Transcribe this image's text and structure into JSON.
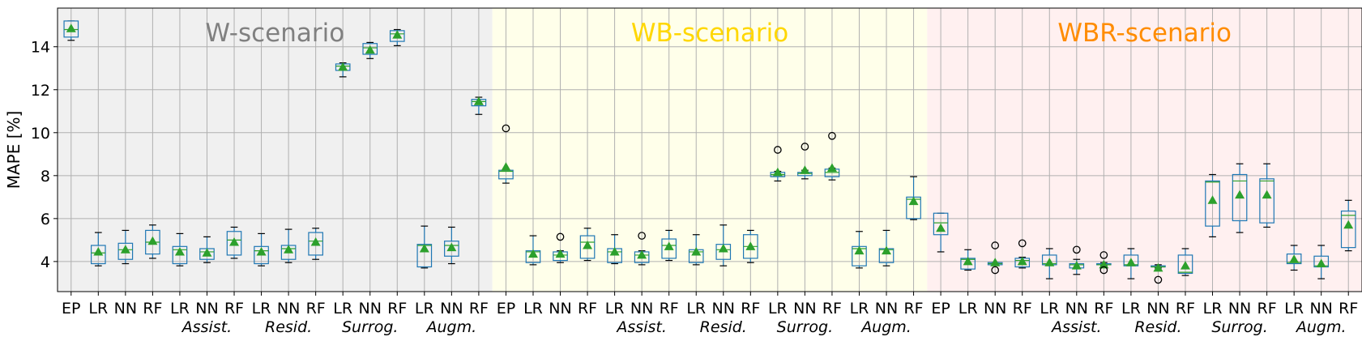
{
  "chart_data": {
    "type": "box",
    "ylabel": "MAPE [%]",
    "xlabel": "",
    "ylim": [
      2.6,
      15.8
    ],
    "yticks": [
      4,
      6,
      8,
      10,
      12,
      14
    ],
    "grid": true,
    "scenarios": [
      {
        "label": "W-scenario",
        "color": "#808080",
        "bg": "#f0f0f0",
        "start": 0,
        "end": 16
      },
      {
        "label": "WB-scenario",
        "color": "#ffd700",
        "bg": "#ffffea",
        "start": 16,
        "end": 32
      },
      {
        "label": "WBR-scenario",
        "color": "#ff8c00",
        "bg": "#fff0f0",
        "start": 32,
        "end": 48
      }
    ],
    "categories": [
      "EP",
      "LR",
      "NN",
      "RF",
      "LR",
      "NN",
      "RF",
      "LR",
      "NN",
      "RF",
      "LR",
      "NN",
      "RF",
      "LR",
      "NN",
      "RF",
      "EP",
      "LR",
      "NN",
      "RF",
      "LR",
      "NN",
      "RF",
      "LR",
      "NN",
      "RF",
      "LR",
      "NN",
      "RF",
      "LR",
      "NN",
      "RF",
      "EP",
      "LR",
      "NN",
      "RF",
      "LR",
      "NN",
      "RF",
      "LR",
      "NN",
      "RF",
      "LR",
      "NN",
      "RF",
      "LR",
      "NN",
      "RF"
    ],
    "group_labels": [
      {
        "text": "Assist.",
        "center": 5
      },
      {
        "text": "Resid.",
        "center": 8
      },
      {
        "text": "Surrog.",
        "center": 11
      },
      {
        "text": "Augm.",
        "center": 14
      },
      {
        "text": "Assist.",
        "center": 21
      },
      {
        "text": "Resid.",
        "center": 24
      },
      {
        "text": "Surrog.",
        "center": 27
      },
      {
        "text": "Augm.",
        "center": 30
      },
      {
        "text": "Assist.",
        "center": 37
      },
      {
        "text": "Resid.",
        "center": 40
      },
      {
        "text": "Surrog.",
        "center": 43
      },
      {
        "text": "Augm.",
        "center": 46
      }
    ],
    "boxes": [
      {
        "lo": 14.3,
        "q1": 14.45,
        "med": 14.8,
        "q3": 15.2,
        "hi": 15.2,
        "mean": 14.85,
        "out": []
      },
      {
        "lo": 3.8,
        "q1": 3.9,
        "med": 4.4,
        "q3": 4.75,
        "hi": 5.35,
        "mean": 4.45,
        "out": []
      },
      {
        "lo": 3.9,
        "q1": 4.1,
        "med": 4.55,
        "q3": 4.85,
        "hi": 5.45,
        "mean": 4.55,
        "out": []
      },
      {
        "lo": 4.15,
        "q1": 4.35,
        "med": 4.9,
        "q3": 5.45,
        "hi": 5.7,
        "mean": 4.95,
        "out": []
      },
      {
        "lo": 3.8,
        "q1": 3.9,
        "med": 4.55,
        "q3": 4.7,
        "hi": 5.3,
        "mean": 4.45,
        "out": []
      },
      {
        "lo": 3.95,
        "q1": 4.1,
        "med": 4.45,
        "q3": 4.6,
        "hi": 5.15,
        "mean": 4.4,
        "out": []
      },
      {
        "lo": 4.15,
        "q1": 4.3,
        "med": 5.0,
        "q3": 5.4,
        "hi": 5.6,
        "mean": 4.9,
        "out": []
      },
      {
        "lo": 3.8,
        "q1": 3.9,
        "med": 4.5,
        "q3": 4.7,
        "hi": 5.3,
        "mean": 4.45,
        "out": []
      },
      {
        "lo": 3.95,
        "q1": 4.1,
        "med": 4.6,
        "q3": 4.75,
        "hi": 5.5,
        "mean": 4.55,
        "out": []
      },
      {
        "lo": 4.1,
        "q1": 4.3,
        "med": 4.95,
        "q3": 5.35,
        "hi": 5.55,
        "mean": 4.9,
        "out": []
      },
      {
        "lo": 12.6,
        "q1": 12.9,
        "med": 13.1,
        "q3": 13.2,
        "hi": 13.25,
        "mean": 13.05,
        "out": []
      },
      {
        "lo": 13.45,
        "q1": 13.65,
        "med": 13.95,
        "q3": 14.15,
        "hi": 14.2,
        "mean": 13.85,
        "out": []
      },
      {
        "lo": 14.05,
        "q1": 14.25,
        "med": 14.6,
        "q3": 14.75,
        "hi": 14.8,
        "mean": 14.55,
        "out": []
      },
      {
        "lo": 3.7,
        "q1": 3.75,
        "med": 4.75,
        "q3": 4.8,
        "hi": 5.65,
        "mean": 4.6,
        "out": []
      },
      {
        "lo": 3.9,
        "q1": 4.25,
        "med": 4.75,
        "q3": 4.95,
        "hi": 5.6,
        "mean": 4.65,
        "out": []
      },
      {
        "lo": 10.85,
        "q1": 11.25,
        "med": 11.45,
        "q3": 11.55,
        "hi": 11.65,
        "mean": 11.45,
        "out": []
      },
      {
        "lo": 7.65,
        "q1": 7.85,
        "med": 8.2,
        "q3": 8.25,
        "hi": 8.3,
        "mean": 8.4,
        "out": [
          10.2
        ]
      },
      {
        "lo": 3.85,
        "q1": 3.95,
        "med": 4.45,
        "q3": 4.5,
        "hi": 5.2,
        "mean": 4.35,
        "out": []
      },
      {
        "lo": 3.95,
        "q1": 4.05,
        "med": 4.3,
        "q3": 4.45,
        "hi": 4.5,
        "mean": 4.35,
        "out": [
          5.15
        ]
      },
      {
        "lo": 4.05,
        "q1": 4.15,
        "med": 4.9,
        "q3": 5.2,
        "hi": 5.55,
        "mean": 4.75,
        "out": []
      },
      {
        "lo": 3.9,
        "q1": 3.95,
        "med": 4.45,
        "q3": 4.6,
        "hi": 5.25,
        "mean": 4.45,
        "out": []
      },
      {
        "lo": 3.85,
        "q1": 3.95,
        "med": 4.3,
        "q3": 4.45,
        "hi": 4.5,
        "mean": 4.3,
        "out": [
          5.2
        ]
      },
      {
        "lo": 4.05,
        "q1": 4.15,
        "med": 4.75,
        "q3": 5.05,
        "hi": 5.45,
        "mean": 4.7,
        "out": []
      },
      {
        "lo": 3.85,
        "q1": 3.95,
        "med": 4.45,
        "q3": 4.55,
        "hi": 5.25,
        "mean": 4.45,
        "out": []
      },
      {
        "lo": 3.8,
        "q1": 4.1,
        "med": 4.55,
        "q3": 4.8,
        "hi": 5.7,
        "mean": 4.6,
        "out": []
      },
      {
        "lo": 3.95,
        "q1": 4.15,
        "med": 4.7,
        "q3": 5.25,
        "hi": 5.45,
        "mean": 4.7,
        "out": []
      },
      {
        "lo": 7.75,
        "q1": 7.95,
        "med": 8.05,
        "q3": 8.15,
        "hi": 8.2,
        "mean": 8.15,
        "out": [
          9.2
        ]
      },
      {
        "lo": 7.85,
        "q1": 8.0,
        "med": 8.1,
        "q3": 8.15,
        "hi": 8.25,
        "mean": 8.25,
        "out": [
          9.35
        ]
      },
      {
        "lo": 7.8,
        "q1": 7.95,
        "med": 8.15,
        "q3": 8.3,
        "hi": 8.35,
        "mean": 8.35,
        "out": [
          9.85
        ]
      },
      {
        "lo": 3.7,
        "q1": 3.8,
        "med": 4.6,
        "q3": 4.7,
        "hi": 5.4,
        "mean": 4.5,
        "out": []
      },
      {
        "lo": 3.8,
        "q1": 3.95,
        "med": 4.55,
        "q3": 4.6,
        "hi": 5.45,
        "mean": 4.5,
        "out": []
      },
      {
        "lo": 5.95,
        "q1": 6.0,
        "med": 6.9,
        "q3": 7.0,
        "hi": 7.95,
        "mean": 6.8,
        "out": []
      },
      {
        "lo": 4.45,
        "q1": 5.25,
        "med": 5.8,
        "q3": 6.25,
        "hi": 6.25,
        "mean": 5.55,
        "out": []
      },
      {
        "lo": 3.6,
        "q1": 3.65,
        "med": 4.1,
        "q3": 4.15,
        "hi": 4.55,
        "mean": 4.0,
        "out": []
      },
      {
        "lo": 3.85,
        "q1": 3.85,
        "med": 3.9,
        "q3": 3.95,
        "hi": 3.95,
        "mean": 3.95,
        "out": [
          4.75,
          3.6
        ]
      },
      {
        "lo": 3.7,
        "q1": 3.75,
        "med": 4.05,
        "q3": 4.15,
        "hi": 4.2,
        "mean": 4.0,
        "out": [
          4.85
        ]
      },
      {
        "lo": 3.2,
        "q1": 3.85,
        "med": 3.9,
        "q3": 4.3,
        "hi": 4.6,
        "mean": 3.95,
        "out": []
      },
      {
        "lo": 3.4,
        "q1": 3.7,
        "med": 3.85,
        "q3": 3.9,
        "hi": 4.1,
        "mean": 3.8,
        "out": [
          4.55
        ]
      },
      {
        "lo": 3.8,
        "q1": 3.85,
        "med": 3.85,
        "q3": 3.9,
        "hi": 3.95,
        "mean": 3.85,
        "out": [
          4.3,
          3.6
        ]
      },
      {
        "lo": 3.2,
        "q1": 3.8,
        "med": 3.85,
        "q3": 4.3,
        "hi": 4.6,
        "mean": 3.95,
        "out": []
      },
      {
        "lo": 3.7,
        "q1": 3.75,
        "med": 3.75,
        "q3": 3.8,
        "hi": 3.85,
        "mean": 3.7,
        "out": [
          3.15
        ]
      },
      {
        "lo": 3.35,
        "q1": 3.45,
        "med": 3.5,
        "q3": 4.3,
        "hi": 4.6,
        "mean": 3.8,
        "out": []
      },
      {
        "lo": 5.15,
        "q1": 5.65,
        "med": 7.7,
        "q3": 7.75,
        "hi": 8.05,
        "mean": 6.85,
        "out": []
      },
      {
        "lo": 5.35,
        "q1": 5.9,
        "med": 7.75,
        "q3": 8.05,
        "hi": 8.55,
        "mean": 7.1,
        "out": []
      },
      {
        "lo": 5.6,
        "q1": 5.8,
        "med": 7.75,
        "q3": 7.85,
        "hi": 8.55,
        "mean": 7.1,
        "out": []
      },
      {
        "lo": 3.6,
        "q1": 3.9,
        "med": 3.95,
        "q3": 4.35,
        "hi": 4.75,
        "mean": 4.1,
        "out": []
      },
      {
        "lo": 3.2,
        "q1": 3.75,
        "med": 3.8,
        "q3": 4.25,
        "hi": 4.75,
        "mean": 3.9,
        "out": []
      },
      {
        "lo": 4.5,
        "q1": 4.65,
        "med": 6.15,
        "q3": 6.35,
        "hi": 6.85,
        "mean": 5.7,
        "out": []
      }
    ],
    "colors": {
      "box": "#1f77b4",
      "median": "#2ca02c",
      "mean": "#2ca02c",
      "whisker": "#000000",
      "grid": "#b0b0b0",
      "axis": "#000000"
    }
  }
}
